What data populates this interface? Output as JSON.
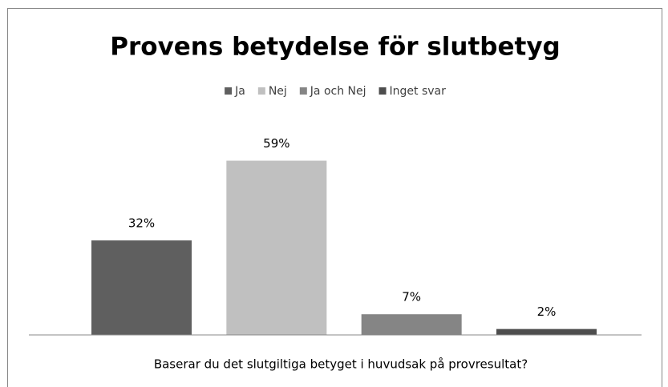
{
  "chart_data": {
    "type": "bar",
    "title": "Provens betydelse för slutbetyg",
    "x_label": "Baserar du det slutgiltiga betyget i huvudsak på provresultat?",
    "categories": [
      null
    ],
    "series": [
      {
        "name": "Ja",
        "color": "#5f5f5f",
        "values": [
          32
        ],
        "value_labels": [
          "32%"
        ]
      },
      {
        "name": "Nej",
        "color": "#c0c0c0",
        "values": [
          59
        ],
        "value_labels": [
          "59%"
        ]
      },
      {
        "name": "Ja och Nej",
        "color": "#858585",
        "values": [
          7
        ],
        "value_labels": [
          "7%"
        ]
      },
      {
        "name": "Inget svar",
        "color": "#4d4d4d",
        "values": [
          2
        ],
        "value_labels": [
          "2%"
        ]
      }
    ],
    "ylim": [
      0,
      70
    ],
    "legend": "top"
  }
}
